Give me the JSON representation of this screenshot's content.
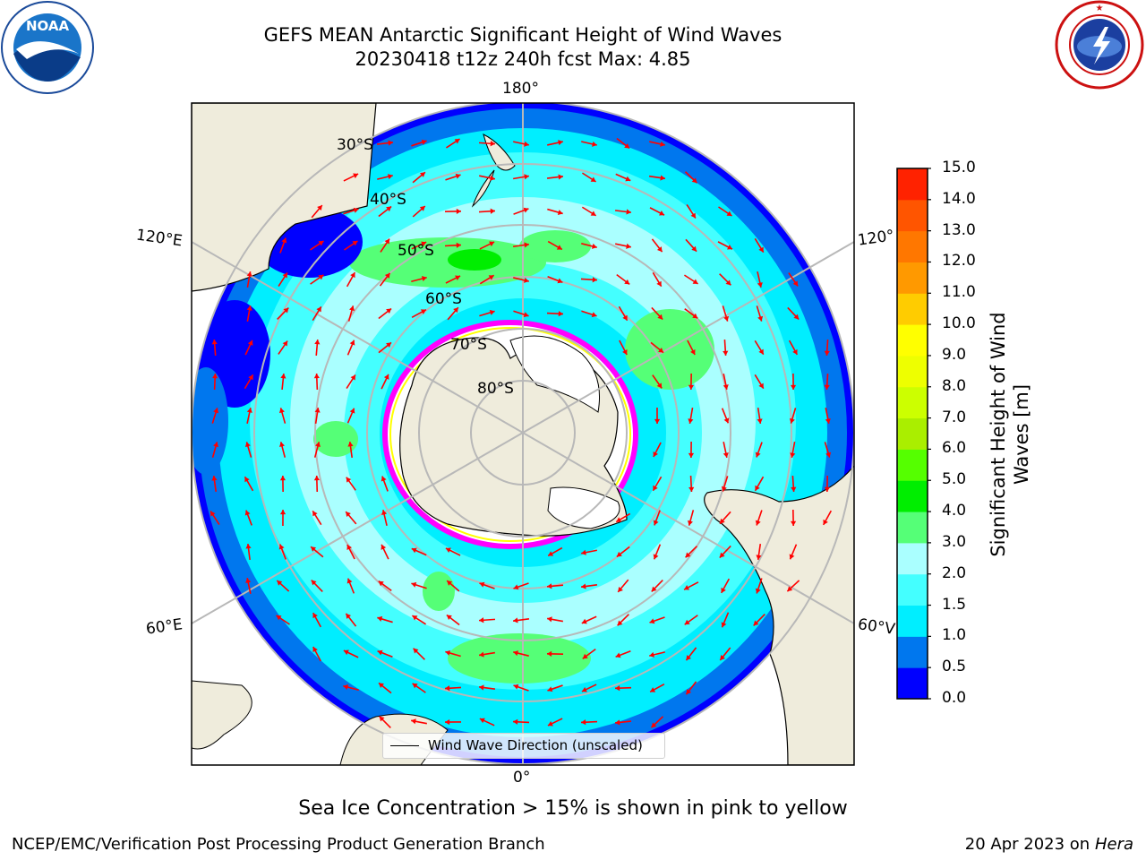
{
  "title_line1": "GEFS MEAN Antarctic Significant Height of Wind Waves",
  "title_line2": "20230418 t12z 240h fcst   Max: 4.85",
  "map": {
    "longitude_labels": {
      "top": "180°",
      "bottom": "0°",
      "left_upper": "120°E",
      "left_lower": "60°E",
      "right_upper": "120°",
      "right_lower": "60°V"
    },
    "latitude_labels": [
      "30°S",
      "40°S",
      "50°S",
      "60°S",
      "70°S",
      "80°S"
    ],
    "legend_text": "Wind Wave Direction (unscaled)",
    "arrow_color": "#ff0000",
    "land_color": "#efecdc",
    "sea_ice_colors": [
      "#ff00ff",
      "#ffff00"
    ]
  },
  "colorbar": {
    "label": "Significant Height of Wind Waves [m]",
    "label_line1": "Significant Height of Wind",
    "label_line2": "Waves [m]",
    "ticks": [
      "0.0",
      "0.5",
      "1.0",
      "1.5",
      "2.0",
      "3.0",
      "4.0",
      "5.0",
      "6.0",
      "7.0",
      "8.0",
      "9.0",
      "10.0",
      "11.0",
      "12.0",
      "13.0",
      "14.0",
      "15.0"
    ],
    "colors": [
      "#0000ff",
      "#0077ee",
      "#00eeff",
      "#44ffff",
      "#aaffff",
      "#55ff77",
      "#00ee00",
      "#55ff00",
      "#aaee00",
      "#ccff00",
      "#eeff00",
      "#ffff00",
      "#ffcc00",
      "#ff9900",
      "#ff7700",
      "#ff5500",
      "#ff2200"
    ]
  },
  "caption": "Sea Ice Concentration > 15% is shown in pink to yellow",
  "footer_left": "NCEP/EMC/Verification Post Processing Product Generation Branch",
  "footer_right_date": "20 Apr 2023 on ",
  "footer_right_host": "Hera",
  "logos": {
    "left": "NOAA",
    "right_text": "NATIONAL WEATHER SERVICE"
  }
}
